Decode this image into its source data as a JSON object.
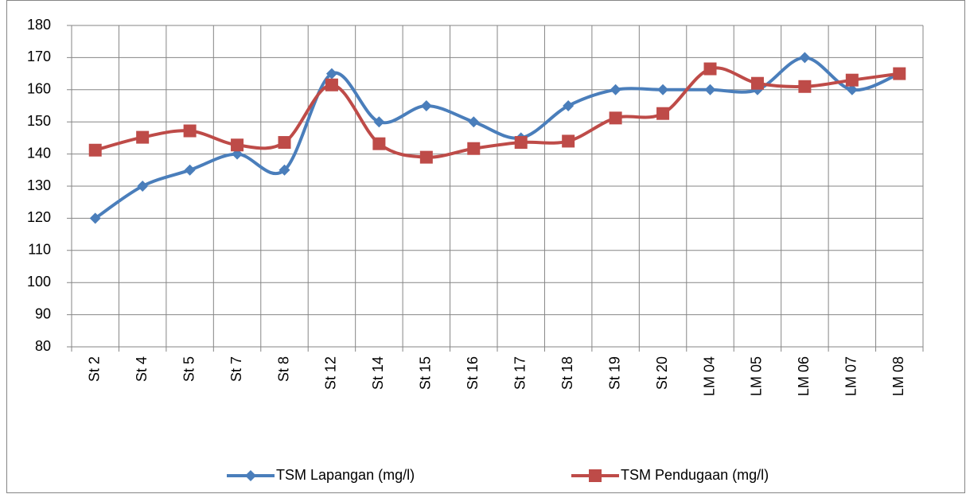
{
  "chart_data": {
    "type": "line",
    "smooth": true,
    "grid": true,
    "categories": [
      "St 2",
      "St 4",
      "St 5",
      "St 7",
      "St 8",
      "St 12",
      "St 14",
      "St 15",
      "St 16",
      "St 17",
      "St 18",
      "St 19",
      "St 20",
      "LM 04",
      "LM 05",
      "LM 06",
      "LM 07",
      "LM 08"
    ],
    "series": [
      {
        "name": "TSM Lapangan (mg/l)",
        "color": "#4a7ebb",
        "marker": "diamond",
        "values": [
          120,
          130,
          135,
          140,
          135,
          165,
          150,
          155,
          150,
          145,
          155,
          160,
          160,
          160,
          160,
          170,
          160,
          165
        ]
      },
      {
        "name": "TSM Pendugaan (mg/l)",
        "color": "#be4b48",
        "marker": "square",
        "values": [
          141.2,
          145.2,
          147.2,
          142.8,
          143.6,
          161.5,
          143.2,
          139,
          141.7,
          143.6,
          144,
          151.2,
          152.6,
          166.5,
          162,
          161,
          163,
          165
        ]
      }
    ],
    "ylim": [
      80,
      180
    ],
    "yticks": [
      80,
      90,
      100,
      110,
      120,
      130,
      140,
      150,
      160,
      170,
      180
    ],
    "legend": "bottom"
  }
}
